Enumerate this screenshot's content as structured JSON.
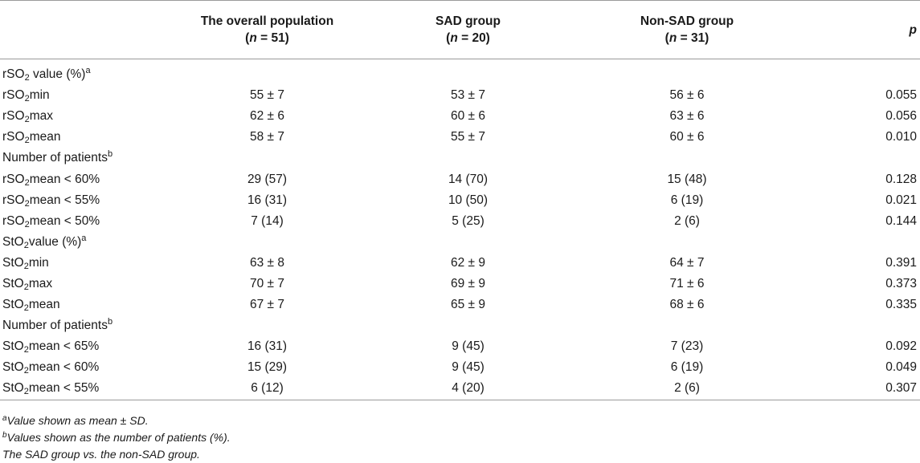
{
  "header": {
    "col1_title": "The overall population",
    "col1_n": "n",
    "col1_eq": " = 51)",
    "col2_title": "SAD group",
    "col2_n": "n",
    "col2_eq": " = 20)",
    "col3_title": "Non-SAD group",
    "col3_n": "n",
    "col3_eq": " = 31)",
    "open_paren": "(",
    "p": "p"
  },
  "rows": [
    {
      "pre": "rSO",
      "sub": "2",
      "post": " value (%)",
      "sup": "a",
      "v1": "",
      "v2": "",
      "v3": "",
      "p": ""
    },
    {
      "pre": "rSO",
      "sub": "2",
      "post": "min",
      "sup": "",
      "v1": "55 ± 7",
      "v2": "53 ± 7",
      "v3": "56 ± 6",
      "p": "0.055"
    },
    {
      "pre": "rSO",
      "sub": "2",
      "post": "max",
      "sup": "",
      "v1": "62 ± 6",
      "v2": "60 ± 6",
      "v3": "63 ± 6",
      "p": "0.056"
    },
    {
      "pre": "rSO",
      "sub": "2",
      "post": "mean",
      "sup": "",
      "v1": "58 ± 7",
      "v2": "55 ± 7",
      "v3": "60 ± 6",
      "p": "0.010"
    },
    {
      "pre": "Number of patients",
      "sub": "",
      "post": "",
      "sup": "b",
      "v1": "",
      "v2": "",
      "v3": "",
      "p": ""
    },
    {
      "pre": "rSO",
      "sub": "2",
      "post": "mean < 60%",
      "sup": "",
      "v1": "29 (57)",
      "v2": "14 (70)",
      "v3": "15 (48)",
      "p": "0.128"
    },
    {
      "pre": "rSO",
      "sub": "2",
      "post": "mean < 55%",
      "sup": "",
      "v1": "16 (31)",
      "v2": "10 (50)",
      "v3": "6 (19)",
      "p": "0.021"
    },
    {
      "pre": "rSO",
      "sub": "2",
      "post": "mean < 50%",
      "sup": "",
      "v1": "7 (14)",
      "v2": "5 (25)",
      "v3": "2 (6)",
      "p": "0.144"
    },
    {
      "pre": "StO",
      "sub": "2",
      "post": "value (%)",
      "sup": "a",
      "v1": "",
      "v2": "",
      "v3": "",
      "p": ""
    },
    {
      "pre": "StO",
      "sub": "2",
      "post": "min",
      "sup": "",
      "v1": "63 ± 8",
      "v2": "62 ± 9",
      "v3": "64 ± 7",
      "p": "0.391"
    },
    {
      "pre": "StO",
      "sub": "2",
      "post": "max",
      "sup": "",
      "v1": "70 ± 7",
      "v2": "69 ± 9",
      "v3": "71 ± 6",
      "p": "0.373"
    },
    {
      "pre": "StO",
      "sub": "2",
      "post": "mean",
      "sup": "",
      "v1": "67 ± 7",
      "v2": "65 ± 9",
      "v3": "68 ± 6",
      "p": "0.335"
    },
    {
      "pre": "Number of patients",
      "sub": "",
      "post": "",
      "sup": "b",
      "v1": "",
      "v2": "",
      "v3": "",
      "p": ""
    },
    {
      "pre": "StO",
      "sub": "2",
      "post": "mean < 65%",
      "sup": "",
      "v1": "16 (31)",
      "v2": "9 (45)",
      "v3": "7 (23)",
      "p": "0.092"
    },
    {
      "pre": "StO",
      "sub": "2",
      "post": "mean < 60%",
      "sup": "",
      "v1": "15 (29)",
      "v2": "9 (45)",
      "v3": "6 (19)",
      "p": "0.049"
    },
    {
      "pre": "StO",
      "sub": "2",
      "post": "mean < 55%",
      "sup": "",
      "v1": "6 (12)",
      "v2": "4 (20)",
      "v3": "2 (6)",
      "p": "0.307"
    }
  ],
  "footnotes": [
    {
      "sup": "a",
      "text": "Value shown as mean ± SD."
    },
    {
      "sup": "b",
      "text": "Values shown as the number of patients (%)."
    },
    {
      "sup": "",
      "text": "The SAD group vs. the non-SAD group."
    }
  ]
}
